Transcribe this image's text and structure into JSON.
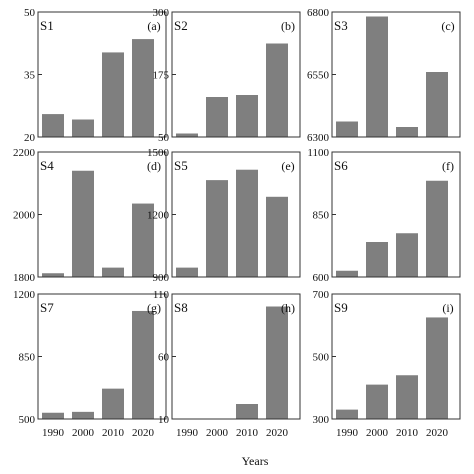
{
  "chart_data": [
    {
      "panel": "S1",
      "letter": "(a)",
      "type": "bar",
      "categories": [
        "1990",
        "2000",
        "2010",
        "2020"
      ],
      "values": [
        25.5,
        24.2,
        40.3,
        43.5
      ],
      "ylim": [
        20,
        50
      ],
      "yticks": [
        "20",
        "35",
        "50"
      ]
    },
    {
      "panel": "S2",
      "letter": "(b)",
      "type": "bar",
      "categories": [
        "1990",
        "2000",
        "2010",
        "2020"
      ],
      "values": [
        57,
        130,
        134,
        237
      ],
      "ylim": [
        50,
        300
      ],
      "yticks": [
        "50",
        "175",
        "300"
      ]
    },
    {
      "panel": "S3",
      "letter": "(c)",
      "type": "bar",
      "categories": [
        "1990",
        "2000",
        "2010",
        "2020"
      ],
      "values": [
        6362,
        6782,
        6340,
        6560
      ],
      "ylim": [
        6300,
        6800
      ],
      "yticks": [
        "6300",
        "6550",
        "6800"
      ]
    },
    {
      "panel": "S4",
      "letter": "(d)",
      "type": "bar",
      "categories": [
        "1990",
        "2000",
        "2010",
        "2020"
      ],
      "values": [
        1812,
        2140,
        1830,
        2035
      ],
      "ylim": [
        1800,
        2200
      ],
      "yticks": [
        "1800",
        "2000",
        "2200"
      ]
    },
    {
      "panel": "S5",
      "letter": "(e)",
      "type": "bar",
      "categories": [
        "1990",
        "2000",
        "2010",
        "2020"
      ],
      "values": [
        945,
        1365,
        1415,
        1285
      ],
      "ylim": [
        900,
        1500
      ],
      "yticks": [
        "900",
        "1200",
        "1500"
      ]
    },
    {
      "panel": "S6",
      "letter": "(f)",
      "type": "bar",
      "categories": [
        "1990",
        "2000",
        "2010",
        "2020"
      ],
      "values": [
        625,
        740,
        775,
        985
      ],
      "ylim": [
        600,
        1100
      ],
      "yticks": [
        "600",
        "850",
        "1100"
      ]
    },
    {
      "panel": "S7",
      "letter": "(g)",
      "type": "bar",
      "categories": [
        "1990",
        "2000",
        "2010",
        "2020"
      ],
      "values": [
        535,
        540,
        670,
        1105
      ],
      "ylim": [
        500,
        1200
      ],
      "yticks": [
        "500",
        "850",
        "1200"
      ]
    },
    {
      "panel": "S8",
      "letter": "(h)",
      "type": "bar",
      "categories": [
        "1990",
        "2000",
        "2010",
        "2020"
      ],
      "values": [
        10,
        10,
        22,
        100
      ],
      "ylim": [
        10,
        110
      ],
      "yticks": [
        "10",
        "60",
        "110"
      ]
    },
    {
      "panel": "S9",
      "letter": "(i)",
      "type": "bar",
      "categories": [
        "1990",
        "2000",
        "2010",
        "2020"
      ],
      "values": [
        330,
        410,
        440,
        625
      ],
      "ylim": [
        300,
        700
      ],
      "yticks": [
        "300",
        "500",
        "700"
      ]
    }
  ],
  "x_axis_title": "Years"
}
